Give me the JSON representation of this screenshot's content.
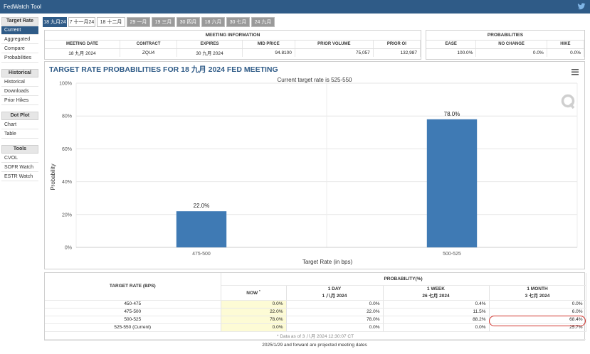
{
  "app": {
    "title": "FedWatch Tool",
    "social_icon": "twitter-icon"
  },
  "sidebar": {
    "sections": [
      {
        "heading": "Target Rate",
        "items": [
          "Current",
          "Aggregated",
          "Compare",
          "Probabilities"
        ],
        "active": "Current"
      },
      {
        "heading": "Historical",
        "items": [
          "Historical",
          "Downloads",
          "Prior Hikes"
        ]
      },
      {
        "heading": "Dot Plot",
        "items": [
          "Chart",
          "Table"
        ]
      },
      {
        "heading": "Tools",
        "items": [
          "CVOL",
          "SOFR Watch",
          "ESTR Watch"
        ]
      }
    ]
  },
  "tabs": [
    "18 九月24",
    "7 十一月24",
    "18 十二月24",
    "29 一月25",
    "19 三月25",
    "30 四月25",
    "18 六月25",
    "30 七月25",
    "24 九月25"
  ],
  "meeting_info": {
    "title": "MEETING INFORMATION",
    "headers": [
      "MEETING DATE",
      "CONTRACT",
      "EXPIRES",
      "MID PRICE",
      "PRIOR VOLUME",
      "PRIOR OI"
    ],
    "row": [
      "18 九月 2024",
      "ZQU4",
      "30 九月 2024",
      "94.8100",
      "75,057",
      "132,987"
    ]
  },
  "probabilities": {
    "title": "PROBABILITIES",
    "headers": [
      "EASE",
      "NO CHANGE",
      "HIKE"
    ],
    "row": [
      "100.0%",
      "0.0%",
      "0.0%"
    ]
  },
  "chart_data": {
    "type": "bar",
    "title": "TARGET RATE PROBABILITIES FOR 18 九月 2024 FED MEETING",
    "subtitle": "Current target rate is 525-550",
    "categories": [
      "475-500",
      "500-525"
    ],
    "values": [
      22.0,
      78.0
    ],
    "data_labels": [
      "22.0%",
      "78.0%"
    ],
    "xlabel": "Target Rate (in bps)",
    "ylabel": "Probability",
    "ylim": [
      0,
      100
    ],
    "yticks": [
      "0%",
      "20%",
      "40%",
      "60%",
      "80%",
      "100%"
    ],
    "grid": true,
    "bar_color": "#3f7ab4"
  },
  "prob_table": {
    "col_target": "TARGET RATE (BPS)",
    "col_group": "PROBABILITY(%)",
    "columns": [
      {
        "label": "NOW",
        "mark": "*",
        "sub": ""
      },
      {
        "label": "1 DAY",
        "sub": "1 八月 2024"
      },
      {
        "label": "1 WEEK",
        "sub": "26 七月 2024"
      },
      {
        "label": "1 MONTH",
        "sub": "3 七月 2024"
      }
    ],
    "rows": [
      {
        "rate": "450-475",
        "values": [
          "0.0%",
          "0.0%",
          "0.4%",
          "0.0%"
        ]
      },
      {
        "rate": "475-500",
        "values": [
          "22.0%",
          "22.0%",
          "11.5%",
          "6.0%"
        ]
      },
      {
        "rate": "500-525",
        "values": [
          "78.0%",
          "78.0%",
          "88.2%",
          "68.4%"
        ]
      },
      {
        "rate": "525-550 (Current)",
        "values": [
          "0.0%",
          "0.0%",
          "0.0%",
          "25.7%"
        ]
      }
    ],
    "note": "* Data as of 3 八月 2024 12:30:07 CT",
    "footer": "2025/1/29 and forward are projected meeting dates"
  },
  "colors": {
    "brand": "#2f5b87",
    "bar": "#3f7ab4",
    "highlight": "#d0322b",
    "now_bg": "#fdfbd5"
  }
}
